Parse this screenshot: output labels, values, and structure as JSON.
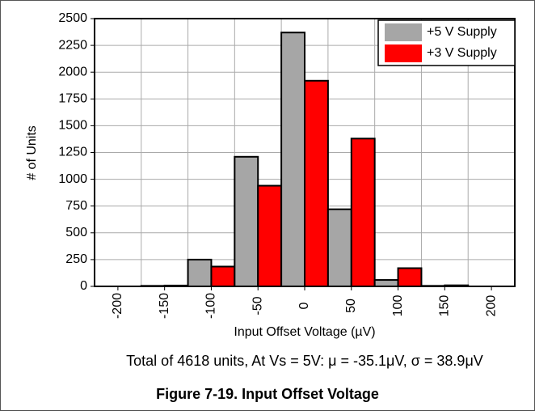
{
  "chart_data": {
    "type": "bar",
    "caption": "Figure 7-19. Input Offset Voltage",
    "annotation": "Total of 4618 units, At Vs = 5V: μ = -35.1μV, σ = 38.9μV",
    "xlabel": "Input Offset Voltage (µV)",
    "ylabel": "# of Units",
    "categories": [
      "-200",
      "-150",
      "-100",
      "-50",
      "0",
      "50",
      "100",
      "150",
      "200"
    ],
    "series": [
      {
        "name": "+5 V Supply",
        "color": "#a6a6a6",
        "values": [
          0,
          5,
          250,
          1210,
          2370,
          720,
          60,
          5,
          0
        ]
      },
      {
        "name": "+3 V Supply",
        "color": "#ff0000",
        "values": [
          0,
          8,
          185,
          940,
          1920,
          1380,
          170,
          10,
          0
        ]
      }
    ],
    "ylim": [
      0,
      2500
    ],
    "yticks": [
      0,
      250,
      500,
      750,
      1000,
      1250,
      1500,
      1750,
      2000,
      2250,
      2500
    ],
    "grid": true,
    "legend": "top-right"
  }
}
